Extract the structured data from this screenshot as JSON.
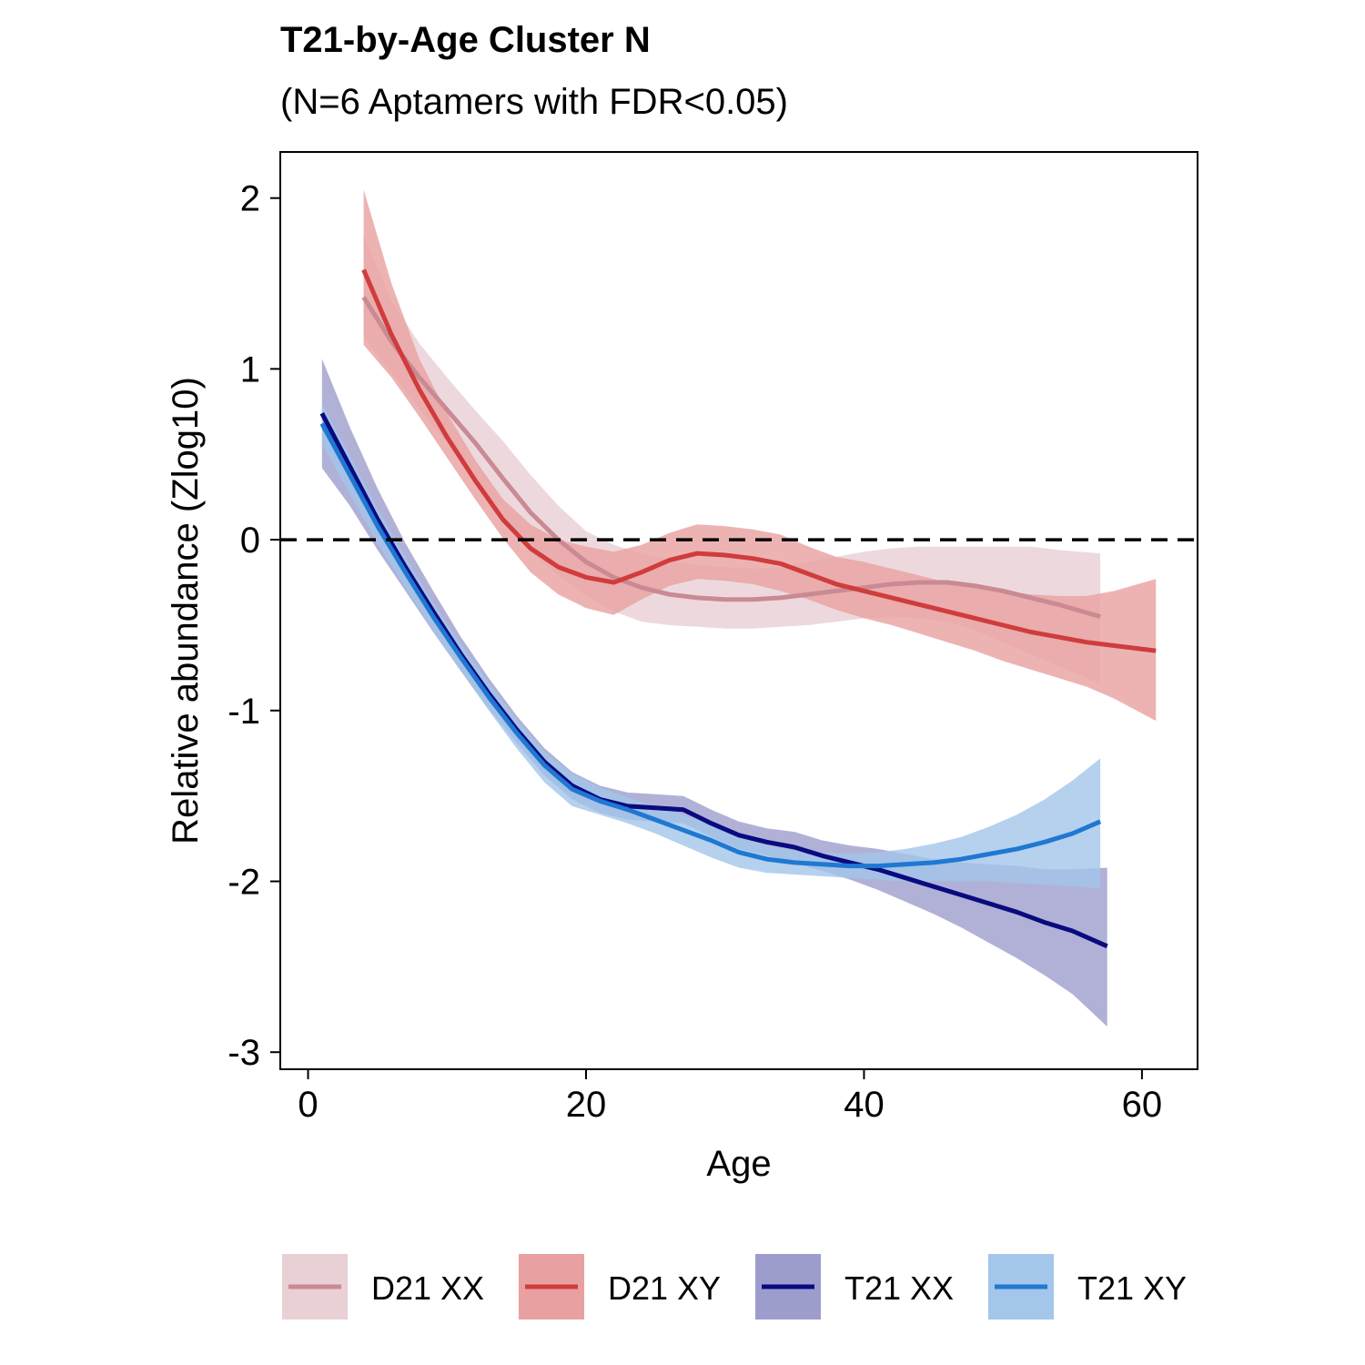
{
  "chart_data": {
    "type": "line",
    "title": "T21-by-Age Cluster N",
    "subtitle": "(N=6 Aptamers with FDR<0.05)",
    "xlabel": "Age",
    "ylabel": "Relative abundance (Zlog10)",
    "xlim": [
      -2,
      64
    ],
    "ylim": [
      -3.1,
      2.27
    ],
    "xticks": [
      0,
      20,
      40,
      60
    ],
    "yticks": [
      2,
      1,
      0,
      -1,
      -2,
      -3
    ],
    "xtick_labels": [
      "0",
      "20",
      "40",
      "60"
    ],
    "ytick_labels": [
      "2",
      "1",
      "0",
      "-1",
      "-2",
      "-3"
    ],
    "reference_line": {
      "y": 0,
      "style": "dashed"
    },
    "grid": false,
    "legend_position": "bottom",
    "series": [
      {
        "name": "D21 XX",
        "color": "#c98a94",
        "band_color": "#e9d0d5",
        "x": [
          4,
          6,
          8,
          10,
          12,
          14,
          16,
          18,
          20,
          22,
          24,
          26,
          28,
          30,
          32,
          34,
          36,
          38,
          40,
          42,
          44,
          46,
          48,
          50,
          52,
          54,
          57
        ],
        "y": [
          1.42,
          1.16,
          0.95,
          0.76,
          0.57,
          0.36,
          0.16,
          0.0,
          -0.13,
          -0.22,
          -0.28,
          -0.32,
          -0.34,
          -0.35,
          -0.35,
          -0.34,
          -0.32,
          -0.3,
          -0.28,
          -0.26,
          -0.25,
          -0.25,
          -0.27,
          -0.3,
          -0.34,
          -0.38,
          -0.45
        ],
        "lower": [
          1.18,
          0.98,
          0.77,
          0.57,
          0.36,
          0.14,
          -0.07,
          -0.21,
          -0.33,
          -0.42,
          -0.48,
          -0.5,
          -0.51,
          -0.52,
          -0.52,
          -0.51,
          -0.5,
          -0.48,
          -0.46,
          -0.45,
          -0.46,
          -0.48,
          -0.53,
          -0.6,
          -0.67,
          -0.74,
          -0.84
        ],
        "upper": [
          1.78,
          1.4,
          1.15,
          0.95,
          0.76,
          0.58,
          0.38,
          0.2,
          0.05,
          -0.03,
          -0.08,
          -0.12,
          -0.15,
          -0.16,
          -0.17,
          -0.16,
          -0.13,
          -0.1,
          -0.07,
          -0.05,
          -0.04,
          -0.04,
          -0.04,
          -0.04,
          -0.04,
          -0.06,
          -0.08
        ]
      },
      {
        "name": "D21 XY",
        "color": "#d03c3c",
        "band_color": "#e9a0a0",
        "x": [
          4,
          6,
          8,
          10,
          12,
          14,
          16,
          18,
          20,
          22,
          24,
          26,
          28,
          30,
          32,
          34,
          36,
          38,
          40,
          42,
          44,
          46,
          48,
          50,
          52,
          54,
          56,
          58,
          61
        ],
        "y": [
          1.58,
          1.2,
          0.88,
          0.6,
          0.35,
          0.12,
          -0.05,
          -0.16,
          -0.22,
          -0.25,
          -0.19,
          -0.12,
          -0.08,
          -0.09,
          -0.11,
          -0.14,
          -0.2,
          -0.26,
          -0.3,
          -0.34,
          -0.38,
          -0.42,
          -0.46,
          -0.5,
          -0.54,
          -0.57,
          -0.6,
          -0.62,
          -0.65
        ],
        "lower": [
          1.14,
          0.95,
          0.72,
          0.48,
          0.24,
          0.01,
          -0.19,
          -0.32,
          -0.4,
          -0.44,
          -0.35,
          -0.27,
          -0.23,
          -0.24,
          -0.26,
          -0.3,
          -0.35,
          -0.41,
          -0.46,
          -0.5,
          -0.55,
          -0.6,
          -0.65,
          -0.71,
          -0.76,
          -0.81,
          -0.86,
          -0.93,
          -1.06
        ],
        "upper": [
          2.05,
          1.5,
          1.06,
          0.74,
          0.47,
          0.24,
          0.09,
          0.0,
          -0.04,
          -0.07,
          -0.03,
          0.04,
          0.09,
          0.08,
          0.06,
          0.03,
          -0.04,
          -0.1,
          -0.13,
          -0.17,
          -0.21,
          -0.25,
          -0.28,
          -0.3,
          -0.32,
          -0.33,
          -0.33,
          -0.3,
          -0.23
        ]
      },
      {
        "name": "T21 XX",
        "color": "#0a0a80",
        "band_color": "#9d9dcd",
        "x": [
          1,
          3,
          5,
          7,
          9,
          11,
          13,
          15,
          17,
          19,
          21,
          23,
          25,
          27,
          29,
          31,
          33,
          35,
          37,
          39,
          41,
          43,
          45,
          47,
          49,
          51,
          53,
          55,
          57.5
        ],
        "y": [
          0.74,
          0.43,
          0.12,
          -0.16,
          -0.42,
          -0.67,
          -0.9,
          -1.11,
          -1.3,
          -1.44,
          -1.52,
          -1.56,
          -1.57,
          -1.58,
          -1.66,
          -1.73,
          -1.77,
          -1.8,
          -1.85,
          -1.89,
          -1.93,
          -1.98,
          -2.03,
          -2.08,
          -2.13,
          -2.18,
          -2.24,
          -2.29,
          -2.38
        ],
        "lower": [
          0.42,
          0.2,
          -0.06,
          -0.3,
          -0.54,
          -0.77,
          -0.99,
          -1.19,
          -1.38,
          -1.52,
          -1.6,
          -1.64,
          -1.65,
          -1.66,
          -1.74,
          -1.81,
          -1.85,
          -1.89,
          -1.94,
          -1.99,
          -2.05,
          -2.12,
          -2.19,
          -2.27,
          -2.36,
          -2.45,
          -2.55,
          -2.66,
          -2.85
        ],
        "upper": [
          1.06,
          0.66,
          0.3,
          -0.02,
          -0.3,
          -0.57,
          -0.81,
          -1.03,
          -1.22,
          -1.36,
          -1.44,
          -1.48,
          -1.49,
          -1.5,
          -1.58,
          -1.65,
          -1.69,
          -1.71,
          -1.76,
          -1.79,
          -1.81,
          -1.84,
          -1.87,
          -1.89,
          -1.9,
          -1.91,
          -1.93,
          -1.93,
          -1.92
        ]
      },
      {
        "name": "T21 XY",
        "color": "#1f78d2",
        "band_color": "#a3c6ea",
        "x": [
          1,
          3,
          5,
          7,
          9,
          11,
          13,
          15,
          17,
          19,
          21,
          23,
          25,
          27,
          29,
          31,
          33,
          35,
          37,
          39,
          41,
          43,
          45,
          47,
          49,
          51,
          53,
          55,
          57
        ],
        "y": [
          0.68,
          0.38,
          0.08,
          -0.19,
          -0.45,
          -0.69,
          -0.92,
          -1.13,
          -1.32,
          -1.46,
          -1.53,
          -1.58,
          -1.64,
          -1.7,
          -1.76,
          -1.83,
          -1.87,
          -1.89,
          -1.9,
          -1.91,
          -1.91,
          -1.9,
          -1.89,
          -1.87,
          -1.84,
          -1.81,
          -1.77,
          -1.72,
          -1.65
        ],
        "lower": [
          0.56,
          0.27,
          -0.02,
          -0.28,
          -0.53,
          -0.77,
          -1.0,
          -1.22,
          -1.42,
          -1.56,
          -1.61,
          -1.66,
          -1.72,
          -1.79,
          -1.86,
          -1.92,
          -1.95,
          -1.96,
          -1.97,
          -1.98,
          -1.99,
          -2.0,
          -2.0,
          -2.0,
          -2.0,
          -2.01,
          -2.02,
          -2.03,
          -2.04
        ],
        "upper": [
          0.8,
          0.49,
          0.18,
          -0.1,
          -0.37,
          -0.61,
          -0.84,
          -1.05,
          -1.24,
          -1.37,
          -1.45,
          -1.51,
          -1.56,
          -1.61,
          -1.67,
          -1.74,
          -1.79,
          -1.82,
          -1.83,
          -1.84,
          -1.83,
          -1.81,
          -1.78,
          -1.74,
          -1.68,
          -1.61,
          -1.52,
          -1.41,
          -1.28
        ]
      }
    ]
  }
}
